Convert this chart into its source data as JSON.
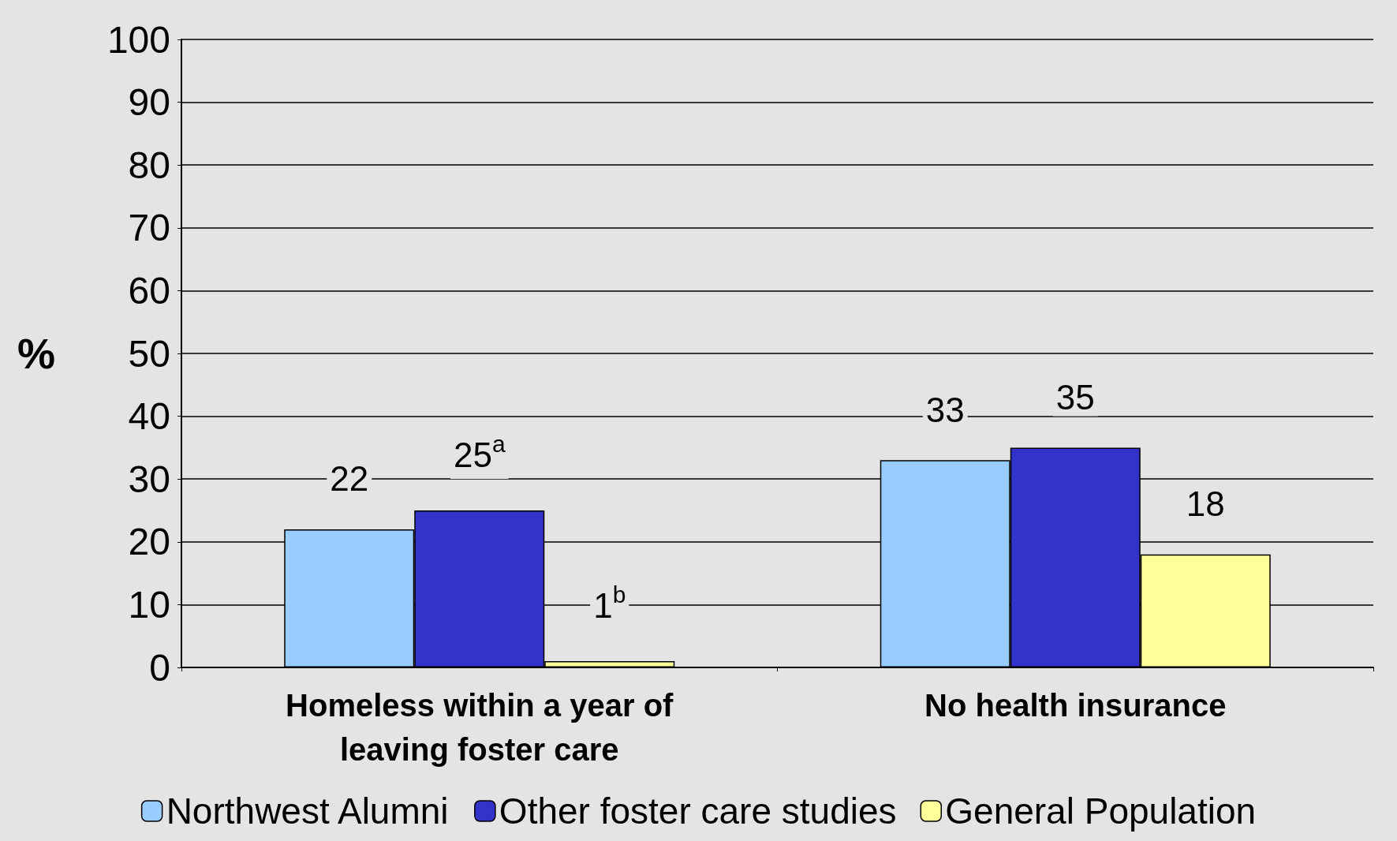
{
  "chart_data": {
    "type": "bar",
    "ylabel": "%",
    "categories": [
      "Homeless within a year of\nleaving foster care",
      "No health insurance"
    ],
    "series": [
      {
        "name": "Northwest Alumni",
        "color": "#99ccff",
        "values": [
          22,
          33
        ],
        "value_labels": [
          "22",
          "33"
        ]
      },
      {
        "name": "Other foster care studies",
        "color": "#3333cc",
        "values": [
          25,
          35
        ],
        "value_labels": [
          "25$^{a}$",
          "35"
        ]
      },
      {
        "name": "General Population",
        "color": "#ffff99",
        "values": [
          1,
          18
        ],
        "value_labels": [
          "1$^{b}$",
          "18"
        ]
      }
    ],
    "ylim": [
      0,
      100
    ],
    "yticks": [
      0,
      10,
      20,
      30,
      40,
      50,
      60,
      70,
      80,
      90,
      100
    ],
    "grid": "y",
    "legend": "bottom"
  }
}
